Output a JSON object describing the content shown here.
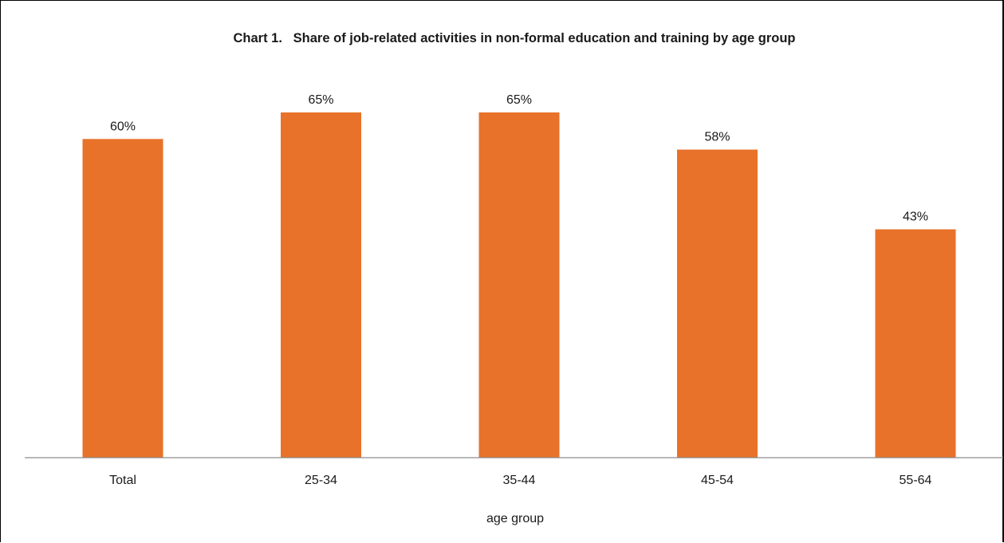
{
  "chart_data": {
    "type": "bar",
    "title": "Chart 1.   Share of job-related activities in non-formal education and training by age group",
    "xlabel": "age group",
    "ylabel": "",
    "categories": [
      "Total",
      "25-34",
      "35-44",
      "45-54",
      "55-64"
    ],
    "values": [
      60,
      65,
      65,
      58,
      43
    ],
    "data_labels": [
      "60%",
      "65%",
      "65%",
      "58%",
      "43%"
    ],
    "ylim": [
      0,
      65
    ],
    "unit": "%",
    "bar_color": "#E8722A",
    "grid": false,
    "legend": "none"
  }
}
